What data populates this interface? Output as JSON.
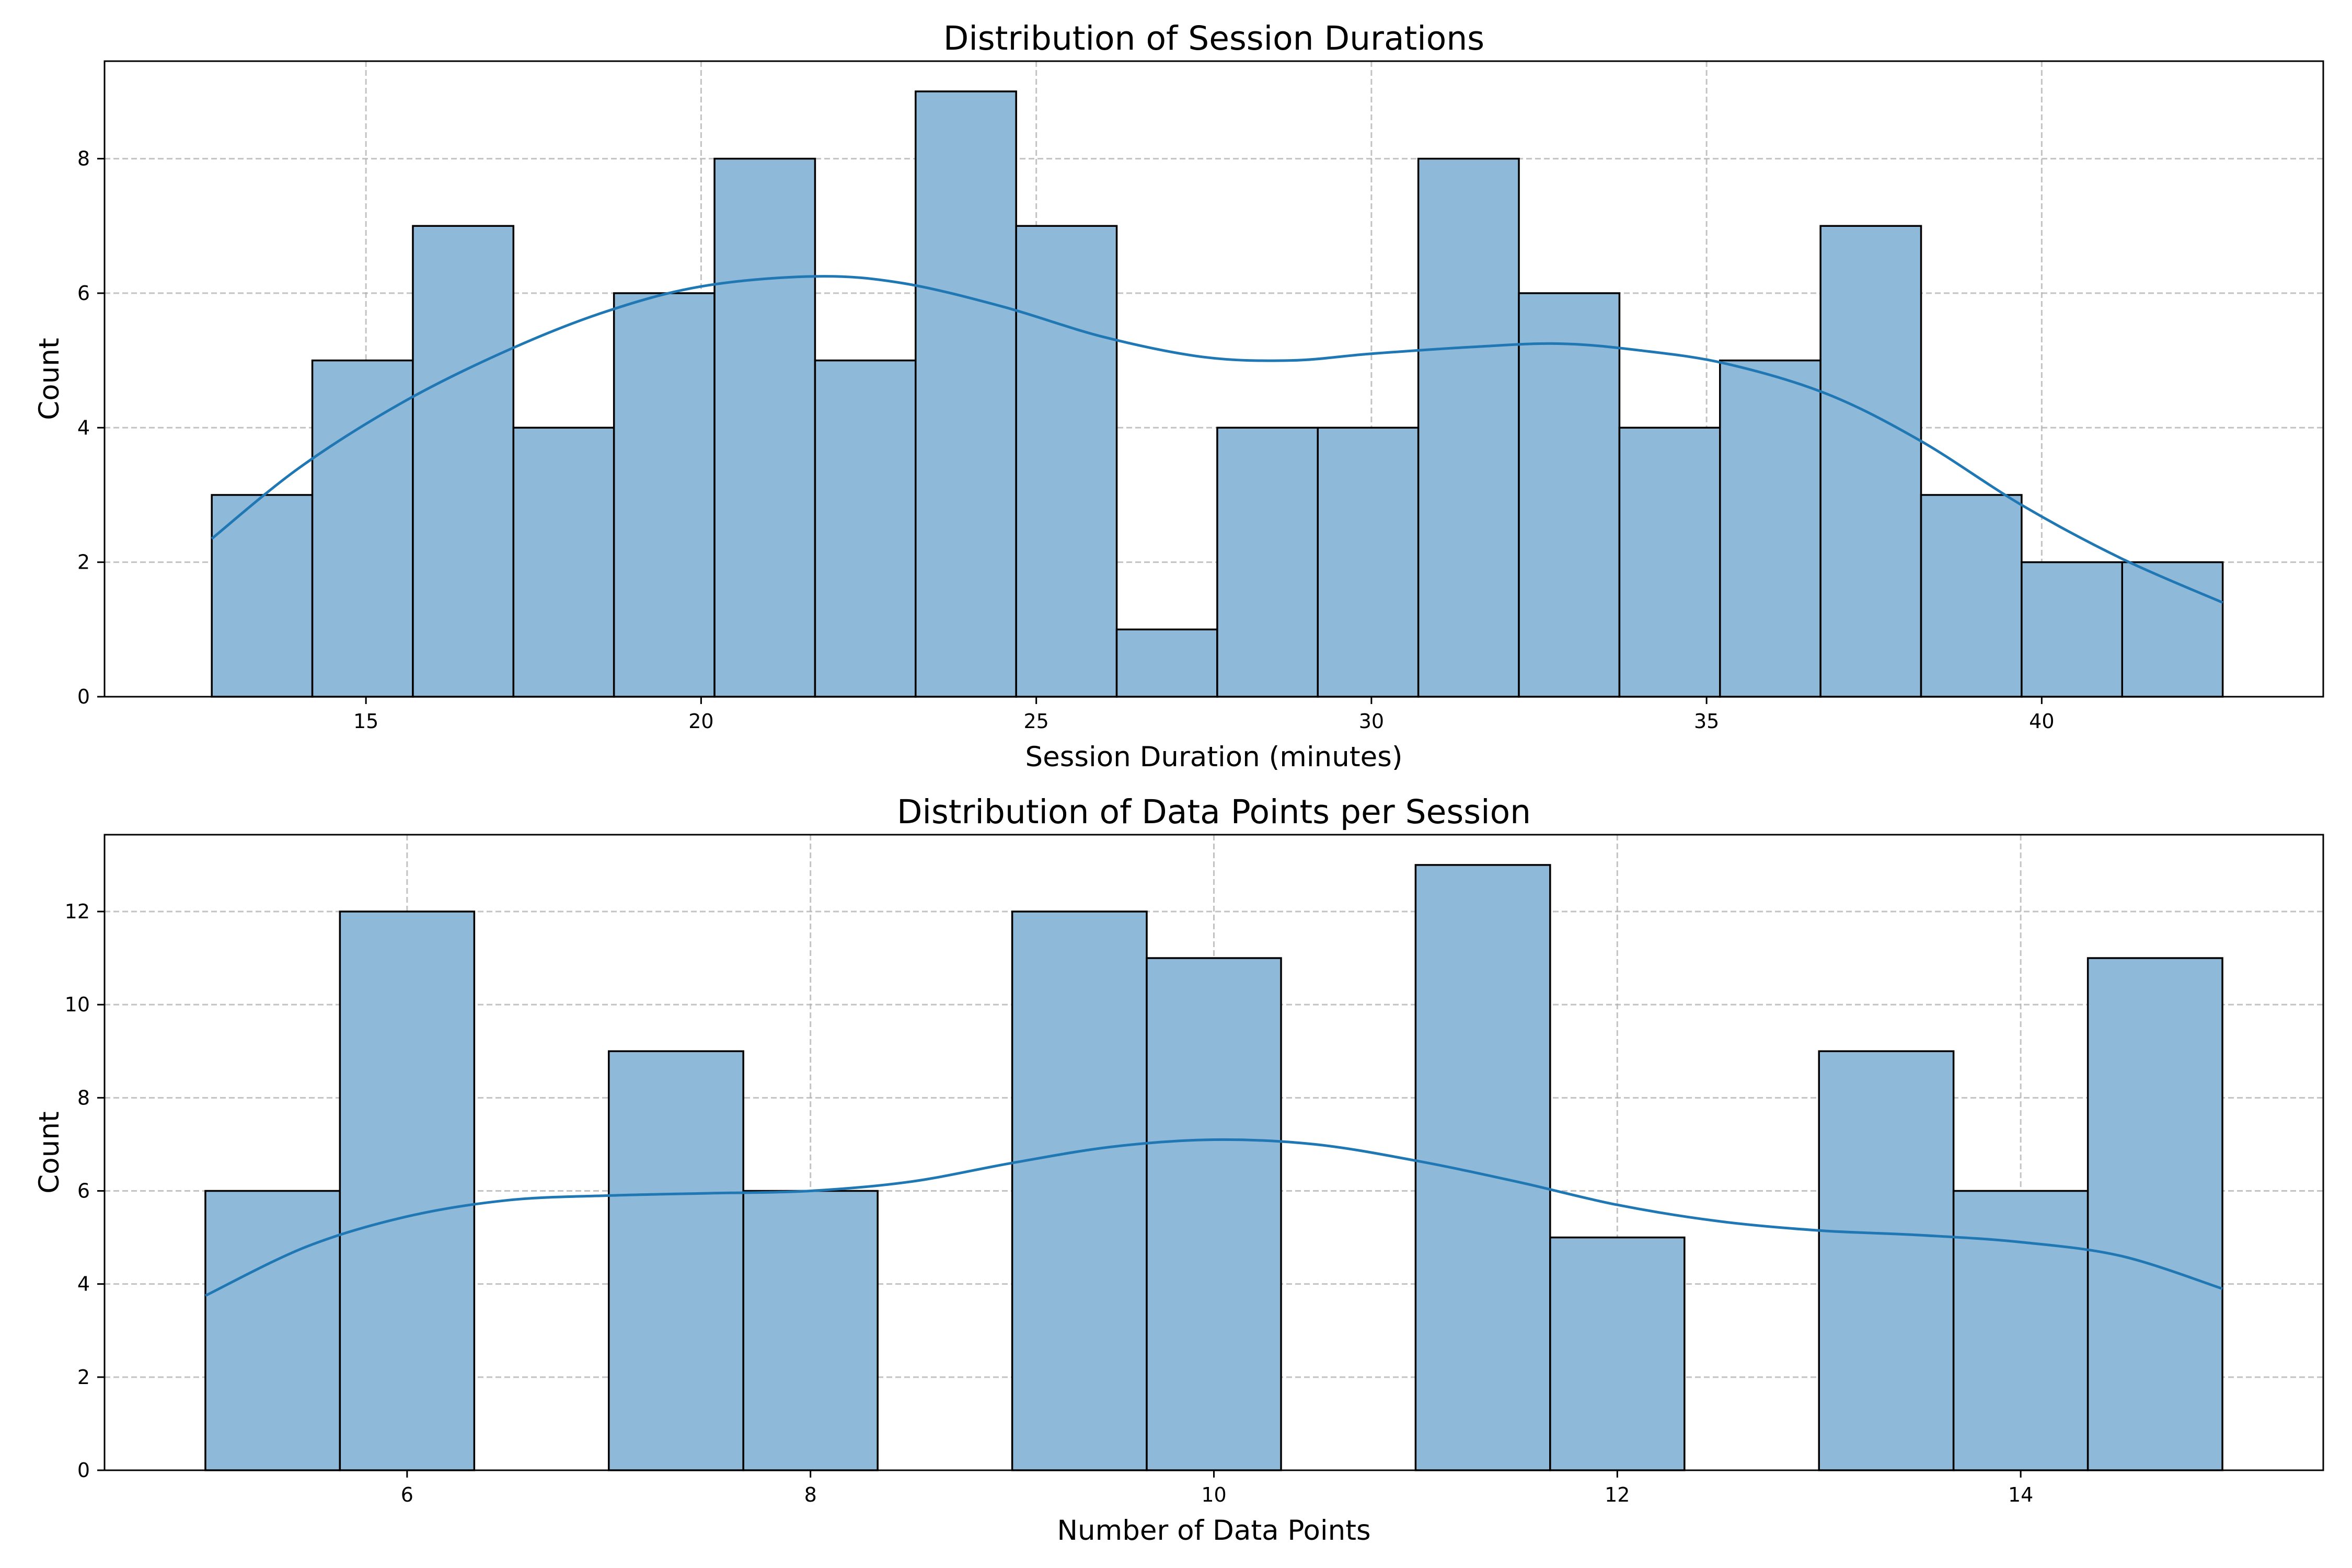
{
  "figure": {
    "background": "#ffffff",
    "bar_color": "#8fb9d9",
    "kde_color": "#1f77b4"
  },
  "chart_data": [
    {
      "type": "bar",
      "subtype": "histogram-with-kde",
      "title": "Distribution of Session Durations",
      "xlabel": "Session Duration (minutes)",
      "ylabel": "Count",
      "xlim": [
        11.1,
        44.2
      ],
      "ylim": [
        0,
        9.45
      ],
      "xticks": [
        15,
        20,
        25,
        30,
        35,
        40
      ],
      "yticks": [
        0,
        2,
        4,
        6,
        8
      ],
      "grid": true,
      "bins": [
        {
          "x0": 12.7,
          "x1": 14.2,
          "count": 3
        },
        {
          "x0": 14.2,
          "x1": 15.7,
          "count": 5
        },
        {
          "x0": 15.7,
          "x1": 17.2,
          "count": 7
        },
        {
          "x0": 17.2,
          "x1": 18.7,
          "count": 4
        },
        {
          "x0": 18.7,
          "x1": 20.2,
          "count": 6
        },
        {
          "x0": 20.2,
          "x1": 21.7,
          "count": 8
        },
        {
          "x0": 21.7,
          "x1": 23.2,
          "count": 5
        },
        {
          "x0": 23.2,
          "x1": 24.7,
          "count": 9
        },
        {
          "x0": 24.7,
          "x1": 26.2,
          "count": 7
        },
        {
          "x0": 26.2,
          "x1": 27.7,
          "count": 1
        },
        {
          "x0": 27.7,
          "x1": 29.2,
          "count": 4
        },
        {
          "x0": 29.2,
          "x1": 30.7,
          "count": 4
        },
        {
          "x0": 30.7,
          "x1": 32.2,
          "count": 8
        },
        {
          "x0": 32.2,
          "x1": 33.7,
          "count": 6
        },
        {
          "x0": 33.7,
          "x1": 35.2,
          "count": 4
        },
        {
          "x0": 35.2,
          "x1": 36.7,
          "count": 5
        },
        {
          "x0": 36.7,
          "x1": 38.2,
          "count": 7
        },
        {
          "x0": 38.2,
          "x1": 39.7,
          "count": 3
        },
        {
          "x0": 39.7,
          "x1": 41.2,
          "count": 2
        },
        {
          "x0": 41.2,
          "x1": 42.7,
          "count": 2
        }
      ],
      "kde": {
        "x": [
          12.7,
          14.0,
          15.5,
          17.0,
          18.5,
          20.0,
          21.7,
          23.0,
          24.5,
          26.0,
          27.5,
          28.8,
          30.0,
          31.5,
          32.8,
          34.0,
          35.3,
          36.8,
          38.2,
          39.7,
          41.2,
          42.7
        ],
        "y": [
          2.35,
          3.4,
          4.35,
          5.1,
          5.7,
          6.1,
          6.25,
          6.15,
          5.8,
          5.35,
          5.05,
          5.0,
          5.1,
          5.2,
          5.25,
          5.15,
          4.95,
          4.5,
          3.8,
          2.85,
          2.05,
          1.4
        ]
      }
    },
    {
      "type": "bar",
      "subtype": "histogram-with-kde",
      "title": "Distribution of Data Points per Session",
      "xlabel": "Number of Data Points",
      "ylabel": "Count",
      "xlim": [
        4.5,
        15.5
      ],
      "ylim": [
        0,
        13.65
      ],
      "xticks": [
        6,
        8,
        10,
        12,
        14
      ],
      "yticks": [
        0,
        2,
        4,
        6,
        8,
        10,
        12
      ],
      "grid": true,
      "bins": [
        {
          "x0": 5.0,
          "x1": 5.667,
          "count": 6
        },
        {
          "x0": 5.667,
          "x1": 6.333,
          "count": 12
        },
        {
          "x0": 6.333,
          "x1": 7.0,
          "count": 0
        },
        {
          "x0": 7.0,
          "x1": 7.667,
          "count": 9
        },
        {
          "x0": 7.667,
          "x1": 8.333,
          "count": 6
        },
        {
          "x0": 8.333,
          "x1": 9.0,
          "count": 0
        },
        {
          "x0": 9.0,
          "x1": 9.667,
          "count": 12
        },
        {
          "x0": 9.667,
          "x1": 10.333,
          "count": 11
        },
        {
          "x0": 10.333,
          "x1": 11.0,
          "count": 0
        },
        {
          "x0": 11.0,
          "x1": 11.667,
          "count": 13
        },
        {
          "x0": 11.667,
          "x1": 12.333,
          "count": 5
        },
        {
          "x0": 12.333,
          "x1": 13.0,
          "count": 0
        },
        {
          "x0": 13.0,
          "x1": 13.667,
          "count": 9
        },
        {
          "x0": 13.667,
          "x1": 14.333,
          "count": 6
        },
        {
          "x0": 14.333,
          "x1": 15.0,
          "count": 11
        }
      ],
      "kde": {
        "x": [
          5.0,
          5.5,
          6.0,
          6.5,
          7.0,
          7.5,
          8.0,
          8.5,
          9.0,
          9.5,
          10.0,
          10.5,
          11.0,
          11.5,
          12.0,
          12.5,
          13.0,
          13.5,
          14.0,
          14.5,
          15.0
        ],
        "y": [
          3.75,
          4.8,
          5.45,
          5.8,
          5.9,
          5.95,
          6.0,
          6.2,
          6.6,
          6.95,
          7.1,
          7.0,
          6.65,
          6.2,
          5.7,
          5.35,
          5.15,
          5.05,
          4.9,
          4.6,
          3.9
        ]
      }
    }
  ]
}
